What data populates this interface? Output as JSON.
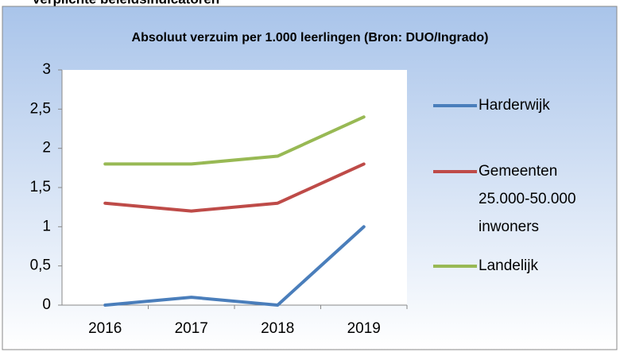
{
  "heading": "Verplichte beleidsindicatoren",
  "chart_data": {
    "type": "line",
    "title": "Absoluut verzuim per 1.000 leerlingen (Bron: DUO/Ingrado)",
    "categories": [
      "2016",
      "2017",
      "2018",
      "2019"
    ],
    "series": [
      {
        "name": "Harderwijk",
        "color": "#4a7ebb",
        "values": [
          0,
          0.1,
          0,
          1
        ]
      },
      {
        "name": "Gemeenten 25.000-50.000 inwoners",
        "color": "#be4b48",
        "values": [
          1.3,
          1.2,
          1.3,
          1.8
        ]
      },
      {
        "name": "Landelijk",
        "color": "#98b954",
        "values": [
          1.8,
          1.8,
          1.9,
          2.4
        ]
      }
    ],
    "ylim": [
      0,
      3
    ],
    "yticks": [
      0,
      {
        "value": 0.5,
        "label": "0,5"
      },
      1,
      {
        "value": 1.5,
        "label": "1,5"
      },
      2,
      {
        "value": 2.5,
        "label": "2,5"
      },
      3
    ],
    "grid": false,
    "legend": "right"
  }
}
